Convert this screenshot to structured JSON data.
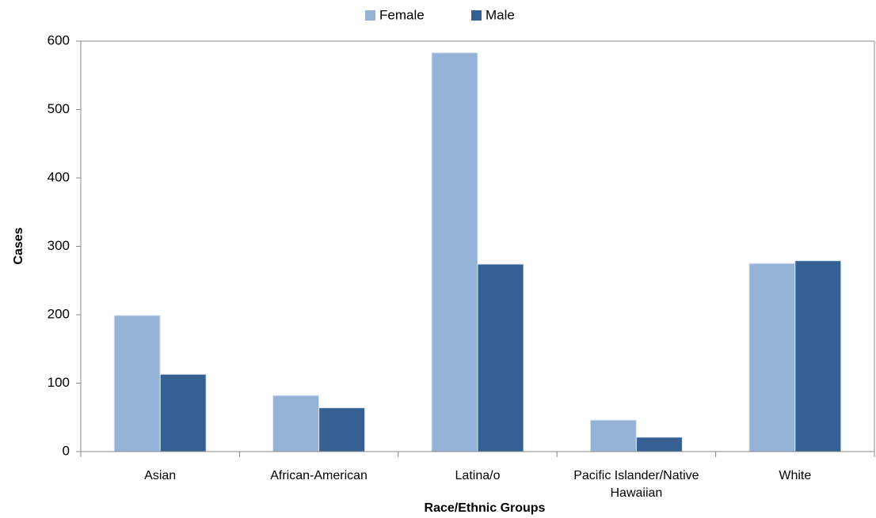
{
  "chart_data": {
    "type": "bar",
    "x_label": "Race/Ethnic Groups",
    "y_label": "Cases",
    "categories": [
      "Asian",
      "African-American",
      "Latina/o",
      "Pacific Islander/Native Hawaiian",
      "White"
    ],
    "series": [
      {
        "name": "Female",
        "color": "#95b3d7",
        "values": [
          199,
          82,
          583,
          46,
          275
        ]
      },
      {
        "name": "Male",
        "color": "#376092",
        "values": [
          113,
          64,
          274,
          21,
          279
        ]
      }
    ],
    "ylim": [
      0,
      600
    ],
    "yticks": [
      0,
      100,
      200,
      300,
      400,
      500,
      600
    ],
    "grid": false,
    "legend": "top"
  }
}
